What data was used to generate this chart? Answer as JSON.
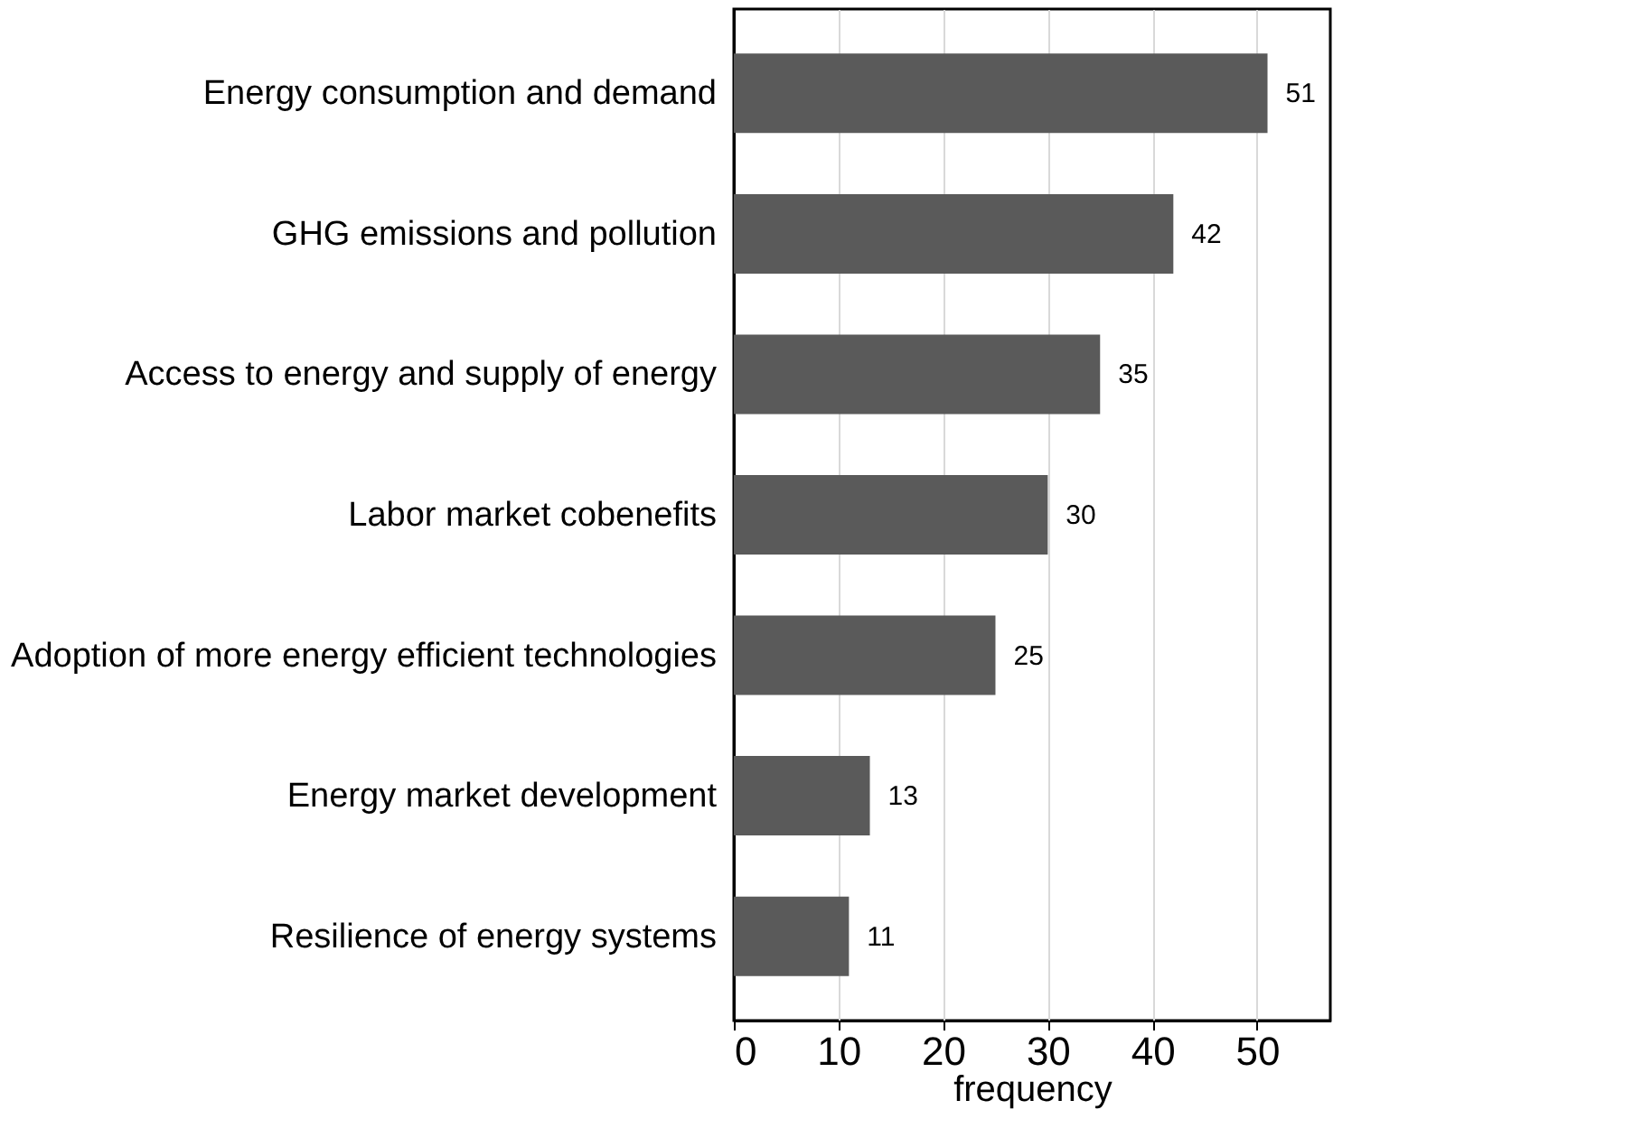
{
  "chart_data": {
    "type": "bar",
    "orientation": "horizontal",
    "xlabel": "frequency",
    "categories": [
      "Energy consumption and demand",
      "GHG emissions and pollution",
      "Access to energy and supply of energy",
      "Labor market cobenefits",
      "Adoption of more energy efficient technologies",
      "Energy market development",
      "Resilience of energy systems"
    ],
    "values": [
      51,
      42,
      35,
      30,
      25,
      13,
      11
    ],
    "color": "#5a5a5a",
    "xlim": [
      0,
      57
    ],
    "xticks": [
      0,
      10,
      20,
      30,
      40,
      50
    ],
    "grid": "x",
    "data_labels": true
  }
}
